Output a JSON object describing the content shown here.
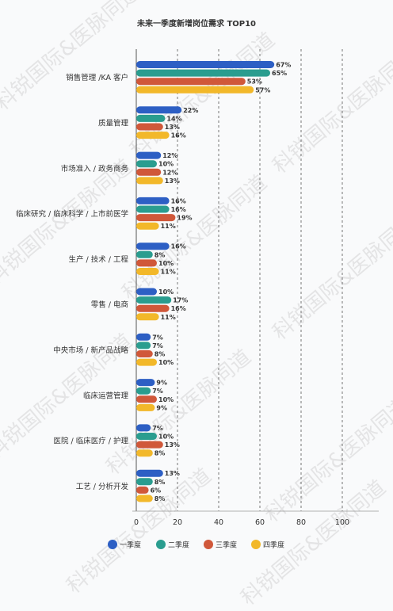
{
  "watermark": "科锐国际&医脉同道",
  "chart_data": {
    "type": "bar",
    "orientation": "horizontal",
    "title": "未来一季度新增岗位需求 TOP10",
    "categories": [
      "销售管理 /KA 客户",
      "质量管理",
      "市场准入 / 政务商务",
      "临床研究 / 临床科学 / 上市前医学",
      "生产 / 技术 / 工程",
      "零售 / 电商",
      "中央市场 / 新产品战略",
      "临床运营管理",
      "医院 / 临床医疗 / 护理",
      "工艺 / 分析开发"
    ],
    "series": [
      {
        "name": "一季度",
        "color": "#2d5fc4",
        "values": [
          67,
          22,
          12,
          16,
          16,
          10,
          7,
          9,
          7,
          13
        ]
      },
      {
        "name": "二季度",
        "color": "#2a9d8f",
        "values": [
          65,
          14,
          10,
          16,
          8,
          17,
          7,
          7,
          10,
          8
        ]
      },
      {
        "name": "三季度",
        "color": "#d0583a",
        "values": [
          53,
          13,
          12,
          19,
          10,
          16,
          8,
          10,
          13,
          6
        ]
      },
      {
        "name": "四季度",
        "color": "#f2b82a",
        "values": [
          57,
          16,
          13,
          11,
          11,
          11,
          10,
          9,
          8,
          8
        ]
      }
    ],
    "xlim": [
      0,
      100
    ],
    "xticks": [
      0,
      20,
      40,
      60,
      80,
      100
    ],
    "value_suffix": "%",
    "grid": "vertical dashed",
    "legend_position": "bottom"
  }
}
